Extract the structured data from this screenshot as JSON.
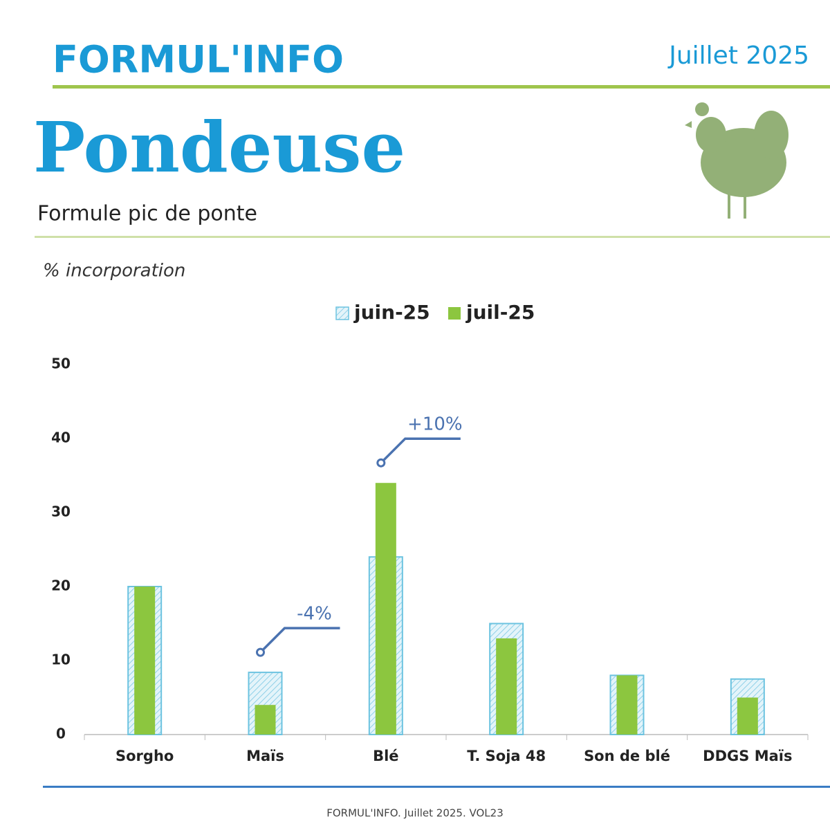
{
  "header": {
    "brand": "FORMUL'INFO",
    "date": "Juillet 2025"
  },
  "chart_data": {
    "type": "bar",
    "title": "Pondeuse",
    "subtitle": "Formule pic de ponte",
    "y_label": "% incorporation",
    "categories": [
      "Sorgho",
      "Maïs",
      "Blé",
      "T. Soja 48",
      "Son de blé",
      "DDGS Maïs"
    ],
    "series": [
      {
        "name": "juin-25",
        "color": "#6cc3e0",
        "pattern": "hatched",
        "values": [
          20,
          8.4,
          24,
          15,
          8,
          7.5
        ]
      },
      {
        "name": "juil-25",
        "color": "#8cc63f",
        "values": [
          20,
          4,
          34,
          13,
          8,
          5
        ]
      }
    ],
    "ylim": [
      0,
      50
    ],
    "yticks": [
      0,
      10,
      20,
      30,
      40,
      50
    ],
    "grid": false,
    "legend": "top",
    "annotations": [
      "-4%",
      "+10%"
    ]
  },
  "footer": "FORMUL'INFO. Juillet 2025. VOL23"
}
